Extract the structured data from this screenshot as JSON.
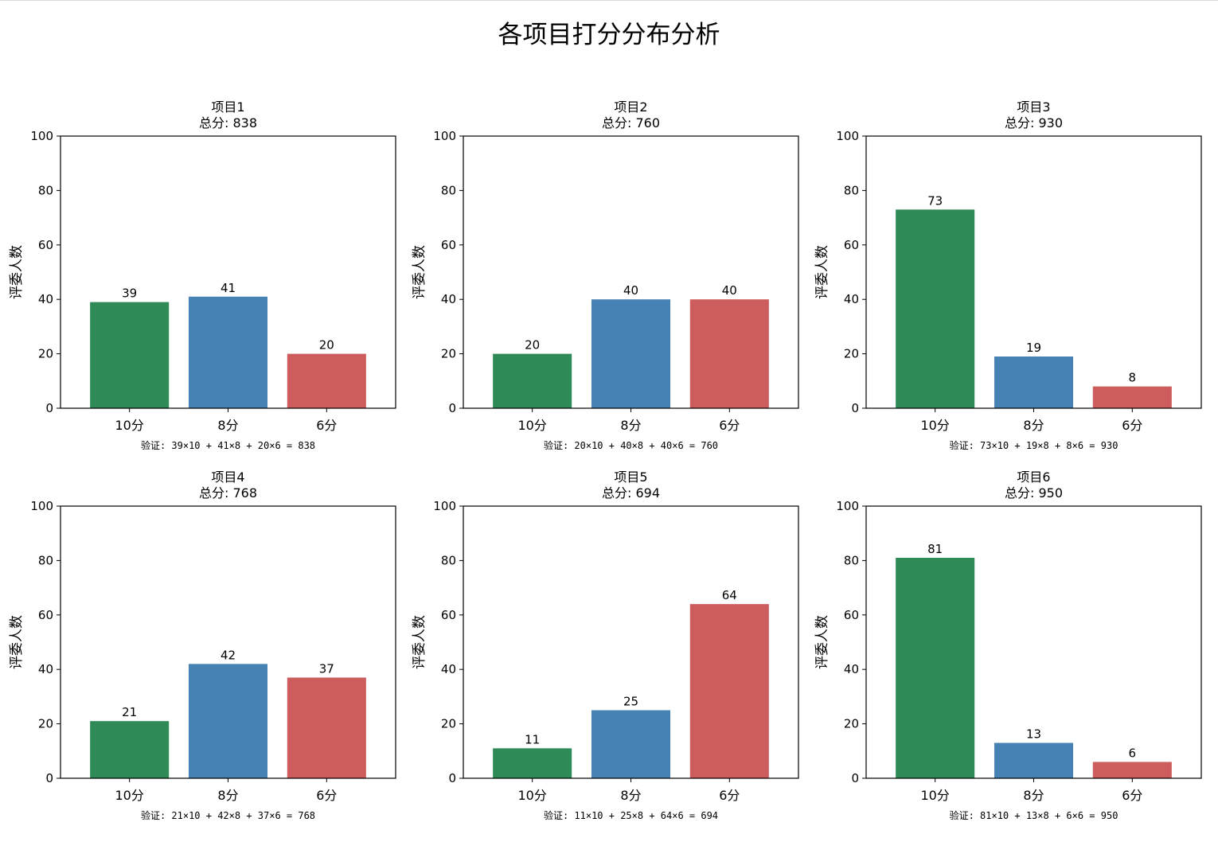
{
  "figure": {
    "title": "各项目打分分布分析",
    "colors": [
      "#2e8b57",
      "#4682b4",
      "#cd5c5c"
    ]
  },
  "chart_data": [
    {
      "type": "bar",
      "title": "项目1",
      "subtitle": "总分: 838",
      "categories": [
        "10分",
        "8分",
        "6分"
      ],
      "values": [
        39,
        41,
        20
      ],
      "ylabel": "评委人数",
      "ylim": [
        0,
        100
      ],
      "yticks": [
        0,
        20,
        40,
        60,
        80,
        100
      ],
      "annotation": "验证: 39×10 + 41×8 + 20×6 = 838",
      "grid": false
    },
    {
      "type": "bar",
      "title": "项目2",
      "subtitle": "总分: 760",
      "categories": [
        "10分",
        "8分",
        "6分"
      ],
      "values": [
        20,
        40,
        40
      ],
      "ylabel": "评委人数",
      "ylim": [
        0,
        100
      ],
      "yticks": [
        0,
        20,
        40,
        60,
        80,
        100
      ],
      "annotation": "验证: 20×10 + 40×8 + 40×6 = 760",
      "grid": false
    },
    {
      "type": "bar",
      "title": "项目3",
      "subtitle": "总分: 930",
      "categories": [
        "10分",
        "8分",
        "6分"
      ],
      "values": [
        73,
        19,
        8
      ],
      "ylabel": "评委人数",
      "ylim": [
        0,
        100
      ],
      "yticks": [
        0,
        20,
        40,
        60,
        80,
        100
      ],
      "annotation": "验证: 73×10 + 19×8 + 8×6 = 930",
      "grid": false
    },
    {
      "type": "bar",
      "title": "项目4",
      "subtitle": "总分: 768",
      "categories": [
        "10分",
        "8分",
        "6分"
      ],
      "values": [
        21,
        42,
        37
      ],
      "ylabel": "评委人数",
      "ylim": [
        0,
        100
      ],
      "yticks": [
        0,
        20,
        40,
        60,
        80,
        100
      ],
      "annotation": "验证: 21×10 + 42×8 + 37×6 = 768",
      "grid": false
    },
    {
      "type": "bar",
      "title": "项目5",
      "subtitle": "总分: 694",
      "categories": [
        "10分",
        "8分",
        "6分"
      ],
      "values": [
        11,
        25,
        64
      ],
      "ylabel": "评委人数",
      "ylim": [
        0,
        100
      ],
      "yticks": [
        0,
        20,
        40,
        60,
        80,
        100
      ],
      "annotation": "验证: 11×10 + 25×8 + 64×6 = 694",
      "grid": false
    },
    {
      "type": "bar",
      "title": "项目6",
      "subtitle": "总分: 950",
      "categories": [
        "10分",
        "8分",
        "6分"
      ],
      "values": [
        81,
        13,
        6
      ],
      "ylabel": "评委人数",
      "ylim": [
        0,
        100
      ],
      "yticks": [
        0,
        20,
        40,
        60,
        80,
        100
      ],
      "annotation": "验证: 81×10 + 13×8 + 6×6 = 950",
      "grid": false
    }
  ]
}
